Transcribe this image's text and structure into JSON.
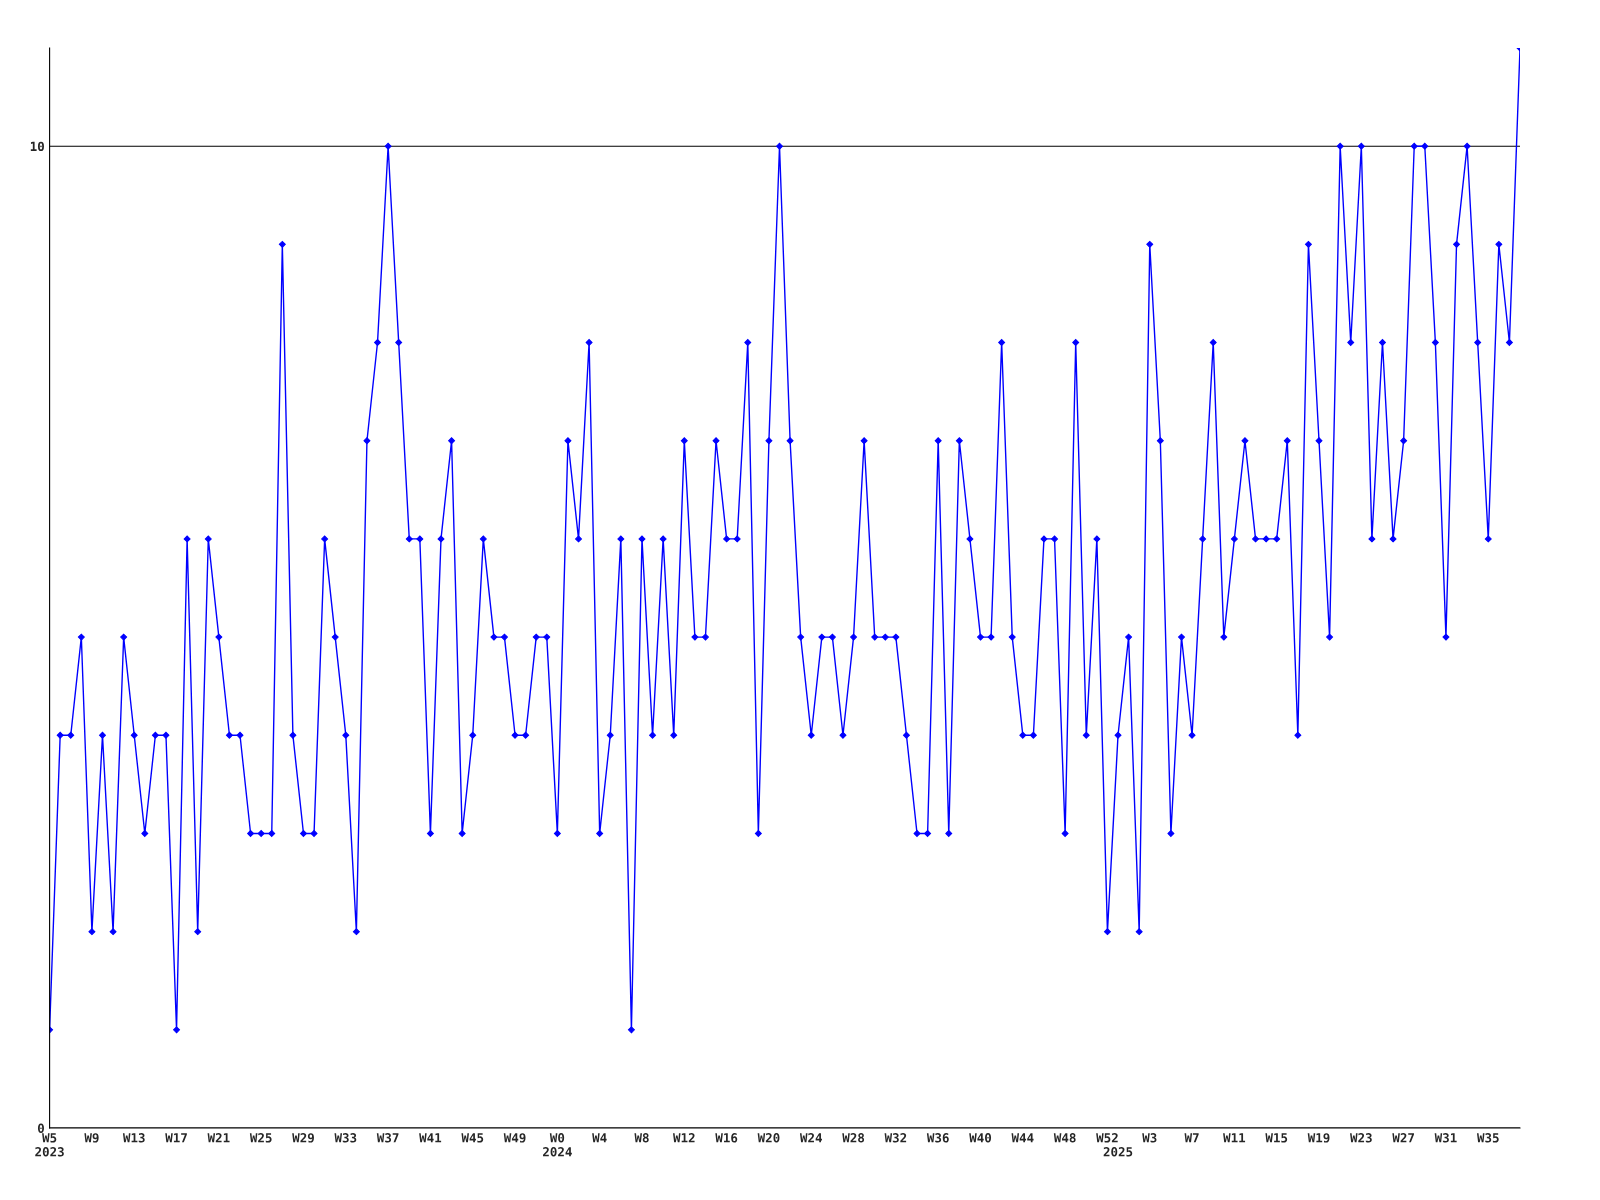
{
  "chart_data": {
    "type": "line",
    "categories": [
      "W5\n2023",
      null,
      null,
      null,
      "W9",
      null,
      null,
      null,
      "W13",
      null,
      null,
      null,
      "W17",
      null,
      null,
      null,
      "W21",
      null,
      null,
      null,
      "W25",
      null,
      null,
      null,
      "W29",
      null,
      null,
      null,
      "W33",
      null,
      null,
      null,
      "W37",
      null,
      null,
      null,
      "W41",
      null,
      null,
      null,
      "W45",
      null,
      null,
      null,
      "W49",
      null,
      null,
      null,
      "W0\n2024",
      null,
      null,
      null,
      "W4",
      null,
      null,
      null,
      "W8",
      null,
      null,
      null,
      "W12",
      null,
      null,
      null,
      "W16",
      null,
      null,
      null,
      "W20",
      null,
      null,
      null,
      "W24",
      null,
      null,
      null,
      "W28",
      null,
      null,
      null,
      "W32",
      null,
      null,
      null,
      "W36",
      null,
      null,
      null,
      "W40",
      null,
      null,
      null,
      "W44",
      null,
      null,
      null,
      "W48",
      null,
      null,
      null,
      "W52",
      "\n2025",
      null,
      null,
      "W3",
      null,
      null,
      null,
      "W7",
      null,
      null,
      null,
      "W11",
      null,
      null,
      null,
      "W15",
      null,
      null,
      null,
      "W19",
      null,
      null,
      null,
      "W23",
      null,
      null,
      null,
      "W27",
      null,
      null,
      null,
      "W31",
      null,
      null,
      null,
      "W35",
      null,
      null,
      null
    ],
    "series": [
      {
        "color": "#0000ff",
        "values": [
          1,
          4,
          4,
          5,
          2,
          4,
          2,
          5,
          4,
          3,
          4,
          4,
          1,
          6,
          2,
          6,
          5,
          4,
          4,
          3,
          3,
          3,
          9,
          4,
          3,
          3,
          6,
          5,
          4,
          2,
          7,
          8,
          10,
          8,
          6,
          6,
          3,
          6,
          7,
          3,
          4,
          6,
          5,
          5,
          4,
          4,
          5,
          5,
          3,
          7,
          6,
          8,
          3,
          4,
          6,
          1,
          6,
          4,
          6,
          4,
          7,
          5,
          5,
          7,
          6,
          6,
          8,
          3,
          7,
          10,
          7,
          5,
          4,
          5,
          5,
          4,
          5,
          7,
          5,
          5,
          5,
          4,
          3,
          3,
          7,
          3,
          7,
          6,
          5,
          5,
          8,
          5,
          4,
          4,
          6,
          6,
          3,
          8,
          4,
          6,
          2,
          4,
          5,
          2,
          9,
          7,
          3,
          5,
          4,
          6,
          8,
          5,
          6,
          7,
          6,
          6,
          6,
          7,
          4,
          9,
          7,
          5,
          10,
          8,
          10,
          6,
          8,
          6,
          7,
          10,
          10,
          8,
          5,
          9,
          10,
          8,
          6,
          9,
          8,
          11
        ]
      }
    ],
    "ylim": [
      0,
      11
    ],
    "yticks": [
      0,
      10
    ],
    "grid": "y",
    "marker": "diamond",
    "line_style": "solid"
  }
}
